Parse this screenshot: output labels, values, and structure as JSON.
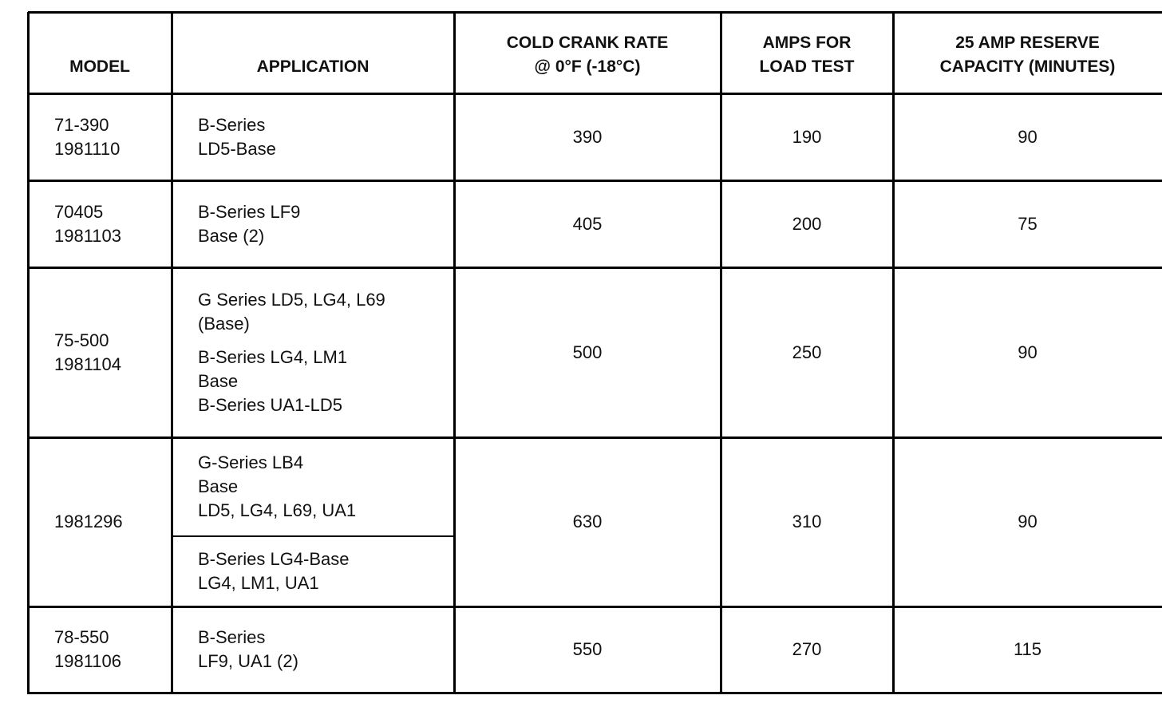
{
  "table": {
    "header": [
      [
        "MODEL"
      ],
      [
        "APPLICATION"
      ],
      [
        "COLD CRANK RATE",
        "@ 0°F (-18°C)"
      ],
      [
        "AMPS FOR",
        "LOAD TEST"
      ],
      [
        "25 AMP RESERVE",
        "CAPACITY (MINUTES)"
      ]
    ],
    "rows": [
      {
        "model": [
          "71-390",
          "1981110"
        ],
        "application": [
          [
            "B-Series",
            "LD5-Base"
          ]
        ],
        "cold_crank": 390,
        "load_test_amps": 190,
        "reserve_minutes": 90
      },
      {
        "model": [
          "70405",
          "1981103"
        ],
        "application": [
          [
            "B-Series LF9",
            "Base (2)"
          ]
        ],
        "cold_crank": 405,
        "load_test_amps": 200,
        "reserve_minutes": 75
      },
      {
        "model": [
          "75-500",
          "1981104"
        ],
        "application": [
          [
            "G Series LD5, LG4, L69",
            "(Base)"
          ],
          [
            "B-Series LG4, LM1",
            "Base",
            "B-Series UA1-LD5"
          ]
        ],
        "cold_crank": 500,
        "load_test_amps": 250,
        "reserve_minutes": 90
      },
      {
        "model": [
          "1981296"
        ],
        "application": [
          [
            "G-Series LB4",
            "Base",
            "LD5, LG4, L69, UA1"
          ],
          [
            "B-Series LG4-Base",
            "LG4, LM1, UA1"
          ]
        ],
        "cold_crank": 630,
        "load_test_amps": 310,
        "reserve_minutes": 90
      },
      {
        "model": [
          "78-550",
          "1981106"
        ],
        "application": [
          [
            "B-Series",
            "LF9, UA1 (2)"
          ]
        ],
        "cold_crank": 550,
        "load_test_amps": 270,
        "reserve_minutes": 115
      }
    ]
  }
}
